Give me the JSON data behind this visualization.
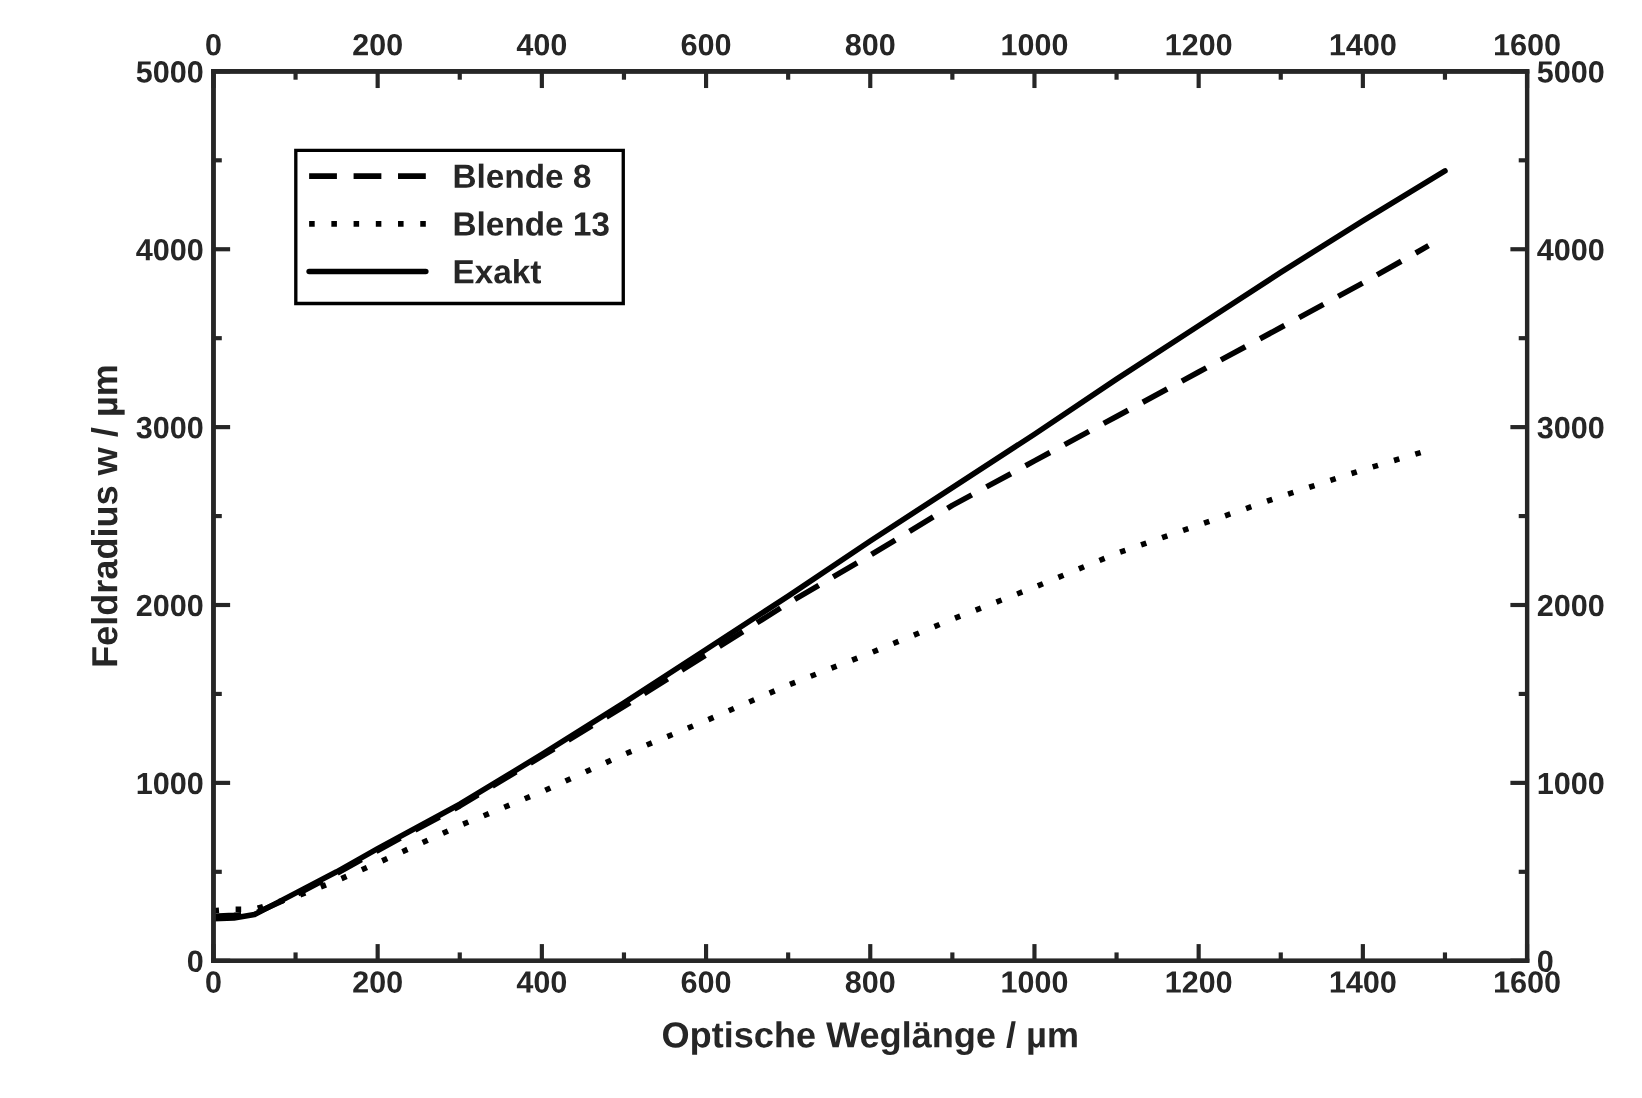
{
  "chart_data": {
    "type": "line",
    "xlabel": "Optische Weglänge / µm",
    "ylabel": "Feldradius w / µm",
    "xlim": [
      0,
      1600
    ],
    "xticks": [
      0,
      200,
      400,
      600,
      800,
      1000,
      1200,
      1400,
      1600
    ],
    "x2lim": [
      0,
      1600
    ],
    "x2ticks": [
      0,
      200,
      400,
      600,
      800,
      1000,
      1200,
      1400,
      1600
    ],
    "ylim": [
      0,
      5000
    ],
    "yticks": [
      0,
      1000,
      2000,
      3000,
      4000,
      5000
    ],
    "y2lim": [
      0,
      5000
    ],
    "y2ticks": [
      0,
      1000,
      2000,
      3000,
      4000,
      5000
    ],
    "grid": false,
    "legend": "top left",
    "marker": "none",
    "series": [
      {
        "name": "Blende 8",
        "color": "#000000",
        "line_style": "dashed",
        "x": [
          0,
          25,
          50,
          100,
          150,
          200,
          300,
          400,
          500,
          600,
          700,
          800,
          900,
          1000,
          1100,
          1200,
          1300,
          1400,
          1480
        ],
        "values": [
          250,
          255,
          265,
          370,
          490,
          620,
          870,
          1150,
          1430,
          1720,
          2010,
          2280,
          2560,
          2810,
          3060,
          3310,
          3560,
          3810,
          4020
        ]
      },
      {
        "name": "Blende 13",
        "color": "#000000",
        "line_style": "dotted",
        "x": [
          0,
          25,
          50,
          100,
          150,
          200,
          300,
          400,
          500,
          600,
          700,
          800,
          900,
          1000,
          1100,
          1200,
          1300,
          1400,
          1480
        ],
        "values": [
          281,
          290,
          290,
          360,
          450,
          550,
          760,
          950,
          1160,
          1350,
          1550,
          1730,
          1920,
          2100,
          2290,
          2450,
          2610,
          2760,
          2870
        ]
      },
      {
        "name": "Exakt",
        "color": "#000000",
        "line_style": "solid",
        "x": [
          0,
          25,
          50,
          100,
          150,
          200,
          300,
          400,
          500,
          600,
          700,
          800,
          900,
          1000,
          1100,
          1200,
          1300,
          1400,
          1500
        ],
        "values": [
          236,
          240,
          260,
          380,
          500,
          630,
          880,
          1160,
          1450,
          1750,
          2050,
          2360,
          2660,
          2960,
          3270,
          3570,
          3870,
          4160,
          4440
        ]
      }
    ]
  }
}
